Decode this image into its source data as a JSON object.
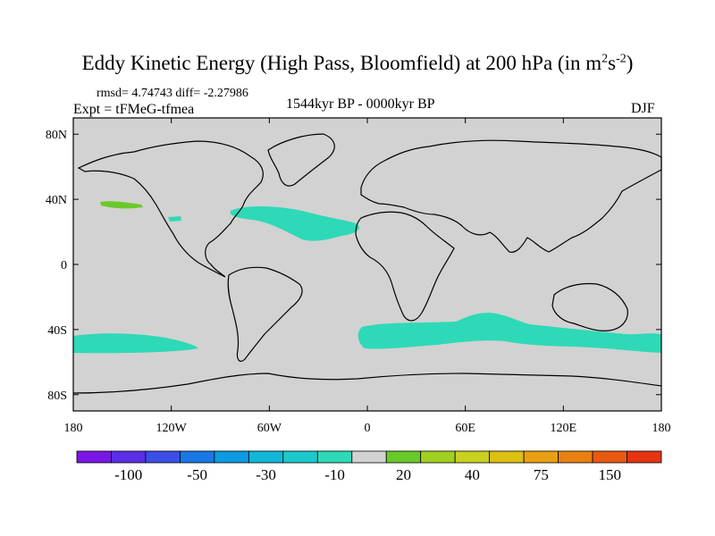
{
  "title": {
    "main": "Eddy Kinetic Energy (High Pass, Bloomfield) at 200 hPa (in m",
    "sup1": "2",
    "mid": "s",
    "sup2": "-2",
    "close": ")"
  },
  "stats_text": "rmsd= 4.74743 diff= -2.27986",
  "experiment_text": "Expt = tFMeG-tfmea",
  "period_text": "1544kyr BP - 0000kyr BP",
  "season_text": "DJF",
  "map": {
    "lat_range": [
      -90,
      90
    ],
    "lon_range": [
      -180,
      180
    ],
    "background_color": "#d2d2d2",
    "anomaly_color": "#2ed9b7",
    "positive_color": "#6ac92a",
    "lat_ticks": [
      {
        "value": 80,
        "label": "80N"
      },
      {
        "value": 40,
        "label": "40N"
      },
      {
        "value": 0,
        "label": "0"
      },
      {
        "value": -40,
        "label": "40S"
      },
      {
        "value": -80,
        "label": "80S"
      }
    ],
    "lon_ticks": [
      {
        "value": -180,
        "label": "180"
      },
      {
        "value": -120,
        "label": "120W"
      },
      {
        "value": -60,
        "label": "60W"
      },
      {
        "value": 0,
        "label": "0"
      },
      {
        "value": 60,
        "label": "60E"
      },
      {
        "value": 120,
        "label": "120E"
      },
      {
        "value": 180,
        "label": "180"
      }
    ]
  },
  "colorbar": {
    "colors": [
      "#7a17e6",
      "#5a2ee6",
      "#3a4fe6",
      "#1a78e6",
      "#0e9ae0",
      "#12b7d8",
      "#1cc9cc",
      "#2ed9b7",
      "#d2d2d2",
      "#6ac92a",
      "#a2d020",
      "#c8d020",
      "#dcc012",
      "#e8a012",
      "#e88012",
      "#e85a12",
      "#e43412"
    ],
    "label_slots": [
      1,
      3,
      5,
      7,
      9,
      11,
      13,
      15
    ],
    "labels": [
      "-100",
      "-50",
      "-30",
      "-10",
      "20",
      "40",
      "75",
      "150"
    ]
  }
}
